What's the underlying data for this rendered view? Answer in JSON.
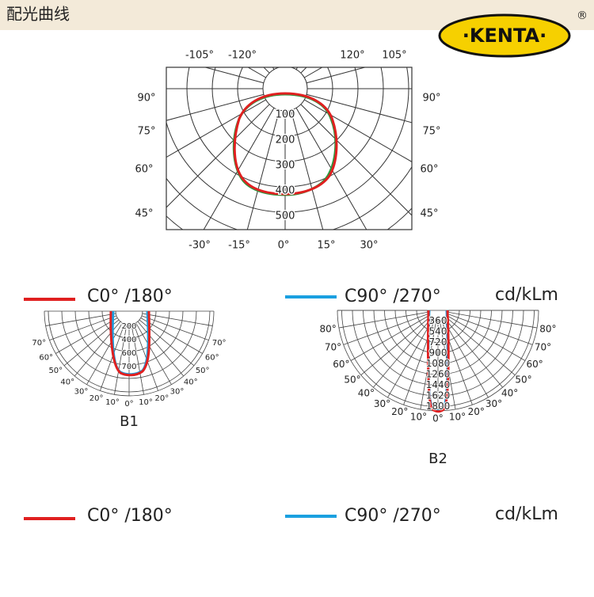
{
  "header": {
    "title": "配光曲线",
    "logo": "·KENTA·",
    "registered": "®"
  },
  "top_diagram": {
    "top_labels": [
      "-105°",
      "-120°",
      "120°",
      "105°"
    ],
    "left_labels": [
      "90°",
      "75°",
      "60°",
      "45°"
    ],
    "right_labels": [
      "90°",
      "75°",
      "60°",
      "45°"
    ],
    "bottom_labels": [
      "-30°",
      "-15°",
      "0°",
      "15°",
      "30°"
    ],
    "radial_labels": [
      "100",
      "200",
      "300",
      "400",
      "500"
    ]
  },
  "b1": {
    "caption": "B1",
    "angle_labels": [
      "70°",
      "60°",
      "50°",
      "40°",
      "30°",
      "20°",
      "10°",
      "0°",
      "10°",
      "20°",
      "30°",
      "40°",
      "50°",
      "60°",
      "70°"
    ],
    "radial_labels": [
      "200",
      "400",
      "600",
      "700"
    ]
  },
  "b2": {
    "caption": "B2",
    "angle_labels": [
      "80°",
      "70°",
      "60°",
      "50°",
      "40°",
      "30°",
      "20°",
      "10°",
      "0°",
      "10°",
      "20°",
      "30°",
      "40°",
      "50°",
      "60°",
      "70°",
      "80°"
    ],
    "radial_labels": [
      "360",
      "540",
      "720",
      "900",
      "1080",
      "1260",
      "1440",
      "1620",
      "1800"
    ]
  },
  "legends": [
    {
      "c0": "C0°  /180°",
      "c90": "C90°  /270°",
      "unit": "cd/kLm"
    },
    {
      "c0": "C0°  /180°",
      "c90": "C90°  /270°",
      "unit": "cd/kLm"
    }
  ]
}
